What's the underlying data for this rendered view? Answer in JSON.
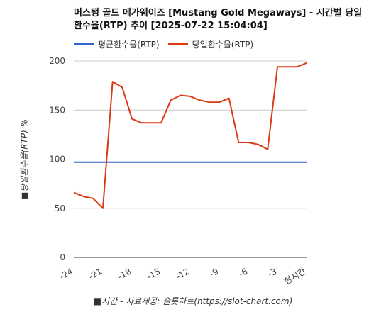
{
  "title": "머스탱 골드 메가웨이즈 [Mustang Gold Megaways] - 시간별 당일 환수율(RTP) 추이 [2025-07-22 15:04:04]",
  "footer": "■시간 - 자료제공: 슬롯차트(https://slot-chart.com)",
  "colors": {
    "series1": "#3366cc",
    "series2": "#dc3912",
    "grid": "#cccccc",
    "axis": "#333333"
  },
  "chart_data": {
    "type": "line",
    "title": "머스탱 골드 메가웨이즈 [Mustang Gold Megaways] - 시간별 당일 환수율(RTP) 추이 [2025-07-22 15:04:04]",
    "xlabel": "■시간 - 자료제공: 슬롯차트(https://slot-chart.com)",
    "ylabel": "■당일환수율(RTP) %",
    "ylim": [
      0,
      200
    ],
    "yticks": [
      0,
      50,
      100,
      150,
      200
    ],
    "xlim": [
      -24,
      0
    ],
    "xticks": [
      "-24",
      "-21",
      "-18",
      "-15",
      "-12",
      "-9",
      "-6",
      "-3",
      "현시간"
    ],
    "xtick_values": [
      -24,
      -21,
      -18,
      -15,
      -12,
      -9,
      -6,
      -3,
      0
    ],
    "grid": true,
    "legend_position": "top",
    "series": [
      {
        "name": "평균환수율(RTP)",
        "color": "#3366cc",
        "x": [
          -24,
          0
        ],
        "y": [
          97,
          97
        ]
      },
      {
        "name": "당일환수율(RTP)",
        "color": "#dc3912",
        "x": [
          -24,
          -23,
          -22,
          -21,
          -20,
          -19,
          -18,
          -17,
          -16,
          -15,
          -14,
          -13,
          -12,
          -11,
          -10,
          -9,
          -8,
          -7,
          -6,
          -5,
          -4,
          -3,
          -2,
          -1,
          0
        ],
        "y": [
          66,
          62,
          60,
          50,
          179,
          173,
          141,
          137,
          137,
          137,
          160,
          165,
          164,
          160,
          158,
          158,
          162,
          117,
          117,
          115,
          110,
          194,
          194,
          194,
          198
        ]
      }
    ]
  }
}
